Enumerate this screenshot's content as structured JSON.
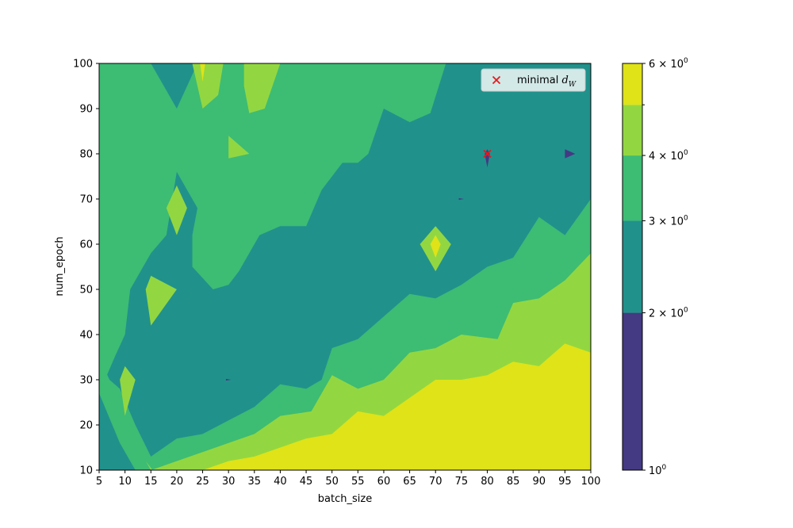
{
  "chart_data": {
    "type": "contour",
    "title": "",
    "xlabel": "batch_size",
    "ylabel": "num_epoch",
    "xlim": [
      5,
      100
    ],
    "ylim": [
      10,
      100
    ],
    "x_ticks": [
      5,
      10,
      15,
      20,
      25,
      30,
      35,
      40,
      45,
      50,
      55,
      60,
      65,
      70,
      75,
      80,
      85,
      90,
      95,
      100
    ],
    "y_ticks": [
      10,
      20,
      30,
      40,
      50,
      60,
      70,
      80,
      90,
      100
    ],
    "levels": [
      1,
      2,
      3,
      4,
      5,
      6
    ],
    "level_colors": [
      "#443983",
      "#21918c",
      "#3dbc74",
      "#92d741",
      "#dfe318"
    ],
    "colorbar": {
      "scale": "log",
      "ticks": [
        {
          "value": 1,
          "base": "10",
          "exp": "0",
          "mantissa": ""
        },
        {
          "value": 2,
          "base": "10",
          "exp": "0",
          "mantissa": "2"
        },
        {
          "value": 3,
          "base": "10",
          "exp": "0",
          "mantissa": "3"
        },
        {
          "value": 4,
          "base": "10",
          "exp": "0",
          "mantissa": "4"
        },
        {
          "value": 6,
          "base": "10",
          "exp": "0",
          "mantissa": "6"
        }
      ],
      "minor_ticks": [
        5
      ]
    },
    "regions": [
      {
        "level": 2,
        "points": [
          [
            5,
            10
          ],
          [
            100,
            10
          ],
          [
            100,
            100
          ],
          [
            5,
            100
          ]
        ]
      },
      {
        "level": 3,
        "points": [
          [
            5,
            27
          ],
          [
            8,
            35
          ],
          [
            10,
            40
          ],
          [
            11,
            50
          ],
          [
            15,
            58
          ],
          [
            18,
            62
          ],
          [
            20,
            76
          ],
          [
            24,
            68
          ],
          [
            23,
            62
          ],
          [
            23,
            55
          ],
          [
            27,
            50
          ],
          [
            30,
            51
          ],
          [
            32,
            54
          ],
          [
            36,
            62
          ],
          [
            40,
            64
          ],
          [
            45,
            64
          ],
          [
            48,
            72
          ],
          [
            52,
            78
          ],
          [
            55,
            78
          ],
          [
            57,
            80
          ],
          [
            60,
            90
          ],
          [
            65,
            87
          ],
          [
            69,
            89
          ],
          [
            72,
            100
          ],
          [
            25,
            100
          ],
          [
            24,
            100
          ],
          [
            20,
            90
          ],
          [
            15,
            100
          ],
          [
            5,
            100
          ]
        ]
      },
      {
        "level": 3,
        "points": [
          [
            5,
            27
          ],
          [
            9,
            16
          ],
          [
            12,
            10
          ],
          [
            100,
            10
          ],
          [
            100,
            70
          ],
          [
            95,
            62
          ],
          [
            90,
            66
          ],
          [
            85,
            57
          ],
          [
            80,
            55
          ],
          [
            75,
            51
          ],
          [
            70,
            48
          ],
          [
            65,
            49
          ],
          [
            60,
            44
          ],
          [
            55,
            39
          ],
          [
            50,
            37
          ],
          [
            48,
            30
          ],
          [
            45,
            28
          ],
          [
            40,
            29
          ],
          [
            35,
            24
          ],
          [
            30,
            21
          ],
          [
            25,
            18
          ],
          [
            20,
            17
          ],
          [
            15,
            13
          ],
          [
            12,
            20
          ],
          [
            9,
            28
          ],
          [
            7,
            30
          ],
          [
            5,
            35
          ]
        ]
      },
      {
        "level": 3,
        "points": [
          [
            28,
            100
          ],
          [
            30,
            95
          ],
          [
            32,
            100
          ]
        ]
      },
      {
        "level": 4,
        "points": [
          [
            14,
            12
          ],
          [
            16,
            9
          ],
          [
            100,
            9
          ],
          [
            100,
            58
          ],
          [
            95,
            52
          ],
          [
            90,
            48
          ],
          [
            85,
            47
          ],
          [
            82,
            39
          ],
          [
            75,
            40
          ],
          [
            70,
            37
          ],
          [
            65,
            36
          ],
          [
            60,
            30
          ],
          [
            55,
            28
          ],
          [
            50,
            31
          ],
          [
            46,
            23
          ],
          [
            40,
            22
          ],
          [
            35,
            18
          ],
          [
            30,
            16
          ],
          [
            25,
            14
          ],
          [
            20,
            12
          ],
          [
            15,
            10
          ]
        ]
      },
      {
        "level": 4,
        "points": [
          [
            33,
            100
          ],
          [
            40,
            100
          ],
          [
            37,
            90
          ],
          [
            34,
            89
          ],
          [
            33,
            95
          ]
        ]
      },
      {
        "level": 4,
        "points": [
          [
            23,
            100
          ],
          [
            25,
            90
          ],
          [
            28,
            93
          ],
          [
            29,
            100
          ]
        ]
      },
      {
        "level": 4,
        "points": [
          [
            20,
            73
          ],
          [
            22,
            68
          ],
          [
            20,
            62
          ],
          [
            18,
            68
          ]
        ]
      },
      {
        "level": 4,
        "points": [
          [
            14,
            50
          ],
          [
            15,
            53
          ],
          [
            20,
            50
          ],
          [
            15,
            42
          ]
        ]
      },
      {
        "level": 4,
        "points": [
          [
            9,
            30
          ],
          [
            10,
            33
          ],
          [
            12,
            30
          ],
          [
            10,
            22
          ]
        ]
      },
      {
        "level": 4,
        "points": [
          [
            30,
            84
          ],
          [
            34,
            80
          ],
          [
            30,
            79
          ]
        ]
      },
      {
        "level": 4,
        "points": [
          [
            67,
            60
          ],
          [
            70,
            64
          ],
          [
            73,
            60
          ],
          [
            70,
            54
          ]
        ]
      },
      {
        "level": 5,
        "points": [
          [
            25,
            10
          ],
          [
            100,
            10
          ],
          [
            100,
            36
          ],
          [
            95,
            38
          ],
          [
            90,
            33
          ],
          [
            85,
            34
          ],
          [
            80,
            31
          ],
          [
            75,
            30
          ],
          [
            70,
            30
          ],
          [
            65,
            26
          ],
          [
            60,
            22
          ],
          [
            55,
            23
          ],
          [
            50,
            18
          ],
          [
            45,
            17
          ],
          [
            40,
            15
          ],
          [
            35,
            13
          ],
          [
            30,
            12
          ]
        ]
      },
      {
        "level": 5,
        "points": [
          [
            24.5,
            100
          ],
          [
            25.5,
            100
          ],
          [
            25,
            96
          ]
        ]
      },
      {
        "level": 5,
        "points": [
          [
            69,
            60
          ],
          [
            70,
            62
          ],
          [
            71,
            60
          ],
          [
            70,
            57
          ]
        ]
      },
      {
        "level": 1,
        "points": [
          [
            79.5,
            80
          ],
          [
            80,
            77
          ],
          [
            80.5,
            80
          ],
          [
            80,
            81
          ]
        ]
      },
      {
        "level": 1,
        "points": [
          [
            95,
            81
          ],
          [
            97,
            80
          ],
          [
            95,
            79
          ]
        ]
      },
      {
        "level": 1,
        "points": [
          [
            74.5,
            70.2
          ],
          [
            75.5,
            70
          ],
          [
            74.5,
            69.8
          ]
        ]
      },
      {
        "level": 1,
        "points": [
          [
            29.5,
            30.2
          ],
          [
            30.5,
            30
          ],
          [
            29.5,
            29.8
          ]
        ]
      }
    ],
    "series": [
      {
        "marker": "x",
        "color": "#e41a1c",
        "points": [
          [
            80,
            80
          ]
        ]
      }
    ],
    "legend": {
      "placement": "top-right",
      "entries": [
        {
          "text": "minimal ",
          "math_base": "d",
          "math_sub": "W"
        }
      ]
    }
  }
}
